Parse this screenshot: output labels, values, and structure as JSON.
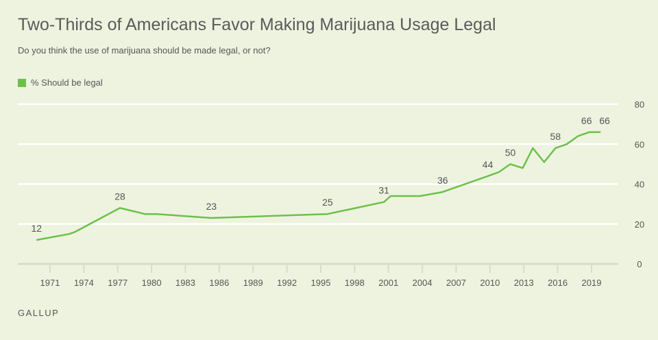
{
  "title": "Two-Thirds of Americans Favor Making Marijuana Usage Legal",
  "subtitle": "Do you think the use of marijuana should be made legal, or not?",
  "source": "GALLUP",
  "chart_data": {
    "type": "line",
    "title": "Two-Thirds of Americans Favor Making Marijuana Usage Legal",
    "subtitle": "Do you think the use of marijuana should be made legal, or not?",
    "xlabel": "",
    "ylabel": "",
    "xlim": [
      1968,
      2022
    ],
    "ylim": [
      0,
      80
    ],
    "x_ticks": [
      1971,
      1974,
      1977,
      1980,
      1983,
      1986,
      1989,
      1992,
      1995,
      1998,
      2001,
      2004,
      2007,
      2010,
      2013,
      2016,
      2019
    ],
    "y_ticks": [
      0,
      20,
      40,
      60,
      80
    ],
    "grid": true,
    "legend_placement": "top-left",
    "color": "#6cc04a",
    "series": [
      {
        "name": "% Should be legal",
        "x": [
          1969.8,
          1972.7,
          1973.2,
          1977.2,
          1979.4,
          1980.4,
          1985.3,
          1995.6,
          2000.6,
          2001.2,
          2003.8,
          2005.8,
          2009.8,
          2010.8,
          2011.8,
          2012.9,
          2013.8,
          2014.8,
          2015.8,
          2016.8,
          2017.8,
          2018.8,
          2019.8
        ],
        "values": [
          12,
          15,
          16,
          28,
          25,
          25,
          23,
          25,
          31,
          34,
          34,
          36,
          44,
          46,
          50,
          48,
          58,
          51,
          58,
          60,
          64,
          66,
          66
        ]
      }
    ],
    "data_labels": [
      {
        "x": 1969.8,
        "value": 12,
        "text": "12"
      },
      {
        "x": 1977.2,
        "value": 28,
        "text": "28"
      },
      {
        "x": 1985.3,
        "value": 23,
        "text": "23"
      },
      {
        "x": 1995.6,
        "value": 25,
        "text": "25"
      },
      {
        "x": 2000.6,
        "value": 31,
        "text": "31"
      },
      {
        "x": 2005.8,
        "value": 36,
        "text": "36"
      },
      {
        "x": 2009.8,
        "value": 44,
        "text": "44"
      },
      {
        "x": 2011.8,
        "value": 50,
        "text": "50"
      },
      {
        "x": 2015.8,
        "value": 58,
        "text": "58"
      },
      {
        "x": 2018.8,
        "value": 66,
        "text": "66"
      },
      {
        "x": 2019.8,
        "value": 66,
        "text": "66"
      }
    ]
  }
}
